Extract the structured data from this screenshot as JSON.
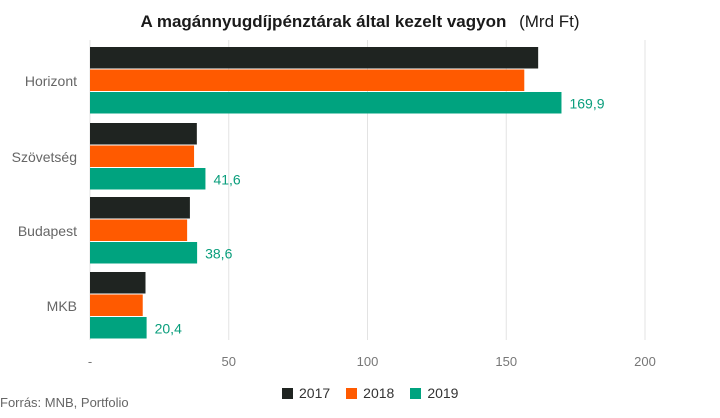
{
  "chart_data": {
    "type": "bar",
    "orientation": "horizontal",
    "title": "A magánnyugdíjpénztárak által kezelt vagyon",
    "unit": "(Mrd Ft)",
    "categories": [
      "Horizont",
      "Szövetség",
      "Budapest",
      "MKB"
    ],
    "series": [
      {
        "name": "2017",
        "color": "#1f2421",
        "values": [
          161.5,
          38.5,
          36.0,
          20.0
        ]
      },
      {
        "name": "2018",
        "color": "#ff5a00",
        "values": [
          156.5,
          37.5,
          35.0,
          19.0
        ]
      },
      {
        "name": "2019",
        "color": "#00a37f",
        "values": [
          169.9,
          41.6,
          38.6,
          20.4
        ]
      }
    ],
    "data_labels": {
      "2019": [
        "169,9",
        "41,6",
        "38,6",
        "20,4"
      ]
    },
    "xlim": [
      0,
      200
    ],
    "x_ticks": [
      0,
      50,
      100,
      150,
      200
    ],
    "x_tick_labels": [
      "-",
      "50",
      "100",
      "150",
      "200"
    ],
    "grid": true,
    "legend_position": "bottom"
  },
  "source": "Forrás: MNB, Portfolio"
}
